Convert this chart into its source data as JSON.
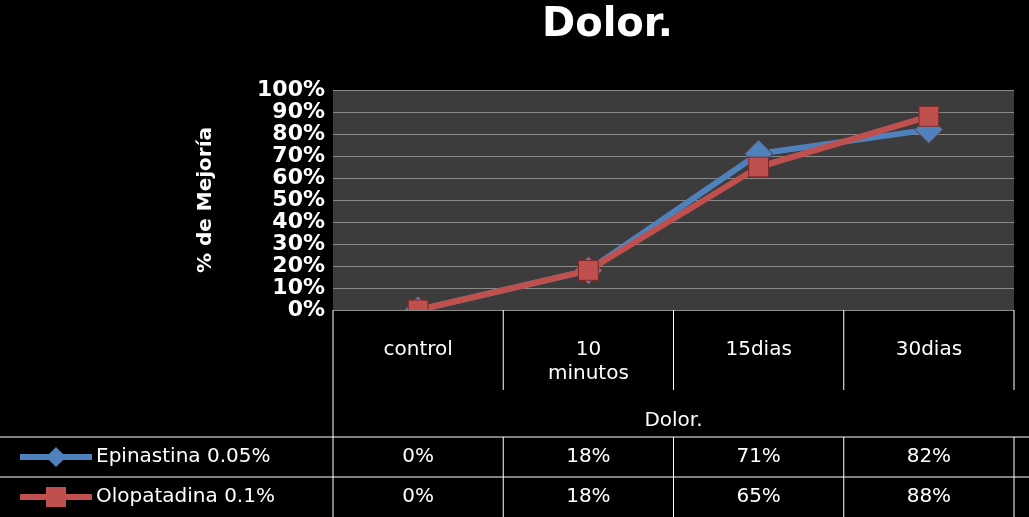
{
  "chart_data": {
    "type": "line",
    "title": "Dolor.",
    "xlabel": "Dolor.",
    "ylabel": "% de Mejoría",
    "categories": [
      "control",
      "10 minutos",
      "15dias",
      "30dias"
    ],
    "series": [
      {
        "name": "Epinastina 0.05%",
        "color": "#4f81bd",
        "marker": "diamond",
        "values": [
          0,
          18,
          71,
          82
        ],
        "value_labels": [
          "0%",
          "18%",
          "71%",
          "82%"
        ]
      },
      {
        "name": "Olopatadina 0.1%",
        "color": "#c0504d",
        "marker": "square",
        "values": [
          0,
          18,
          65,
          88
        ],
        "value_labels": [
          "0%",
          "18%",
          "65%",
          "88%"
        ]
      }
    ],
    "ylim": [
      0,
      100
    ],
    "yticks": [
      {
        "value": 0,
        "label": "0%"
      },
      {
        "value": 10,
        "label": "10%"
      },
      {
        "value": 20,
        "label": "20%"
      },
      {
        "value": 30,
        "label": "30%"
      },
      {
        "value": 40,
        "label": "40%"
      },
      {
        "value": 50,
        "label": "50%"
      },
      {
        "value": 60,
        "label": "60%"
      },
      {
        "value": 70,
        "label": "70%"
      },
      {
        "value": 80,
        "label": "80%"
      },
      {
        "value": 90,
        "label": "90%"
      },
      {
        "value": 100,
        "label": "100%"
      }
    ],
    "grid": "y",
    "legend": "bottom"
  }
}
